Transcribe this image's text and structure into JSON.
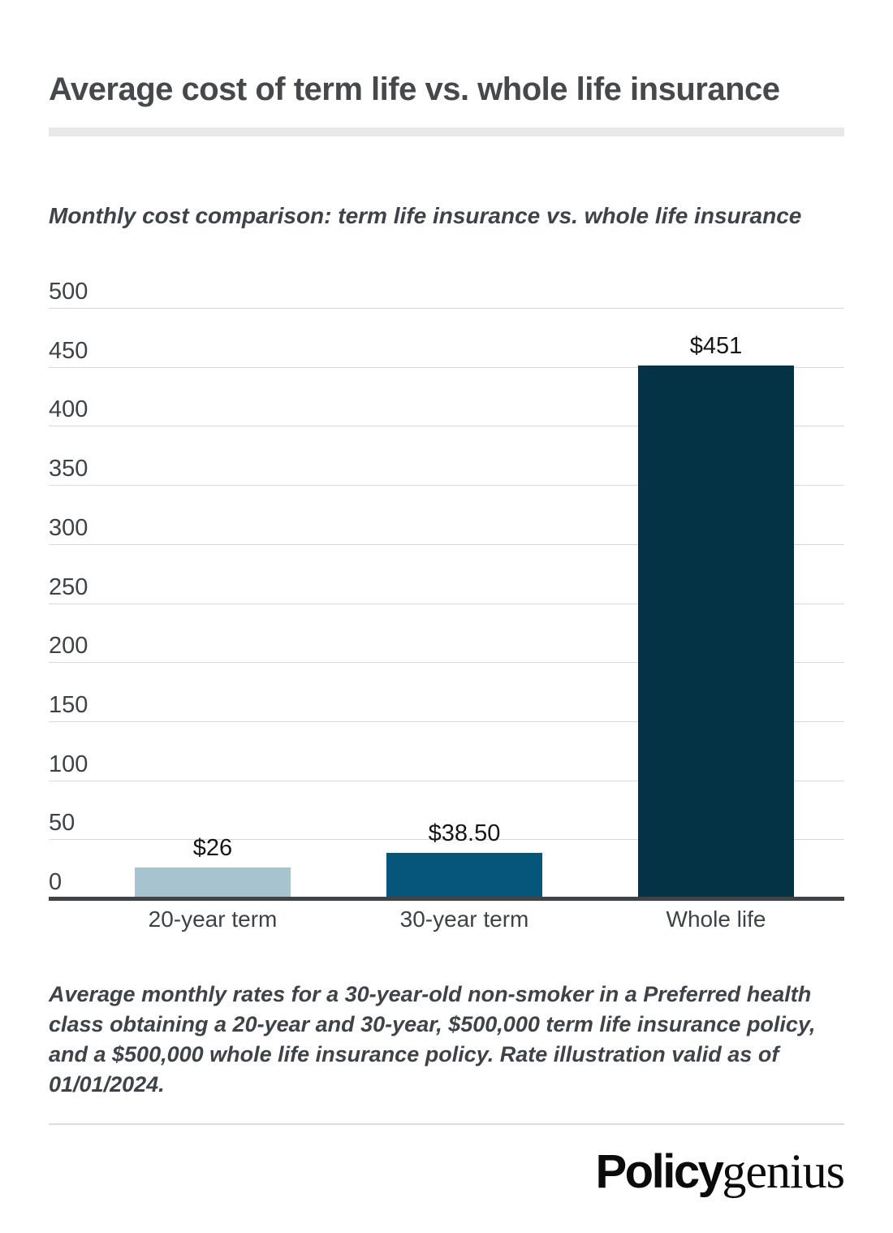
{
  "page": {
    "title": "Average cost of term life vs. whole life insurance"
  },
  "chart_data": {
    "type": "bar",
    "title": "Monthly cost comparison: term life insurance vs. whole life insurance",
    "categories": [
      "20-year term",
      "30-year term",
      "Whole life"
    ],
    "values": [
      26,
      38.5,
      451
    ],
    "value_labels": [
      "$26",
      "$38.50",
      "$451"
    ],
    "bar_colors": [
      "#a7c3d0",
      "#06567c",
      "#043345"
    ],
    "xlabel": "",
    "ylabel": "",
    "ylim": [
      0,
      500
    ],
    "yticks": [
      500,
      450,
      400,
      350,
      300,
      250,
      200,
      150,
      100,
      50,
      0
    ],
    "grid": true,
    "legend": "none"
  },
  "footnote": "Average monthly rates for a 30-year-old non-smoker in a Preferred health class obtaining a 20-year and 30-year, $500,000 term life insurance policy, and a $500,000 whole life insurance policy. Rate illustration valid as of 01/01/2024.",
  "branding": {
    "logo_primary": "Policy",
    "logo_secondary": "genius"
  },
  "colors": {
    "bar_light": "#a7c3d0",
    "bar_mid": "#06567c",
    "bar_dark": "#043345",
    "axis": "#414447",
    "gridline": "#dadada",
    "divider": "#e8e8e8",
    "text": "#3f4347"
  }
}
